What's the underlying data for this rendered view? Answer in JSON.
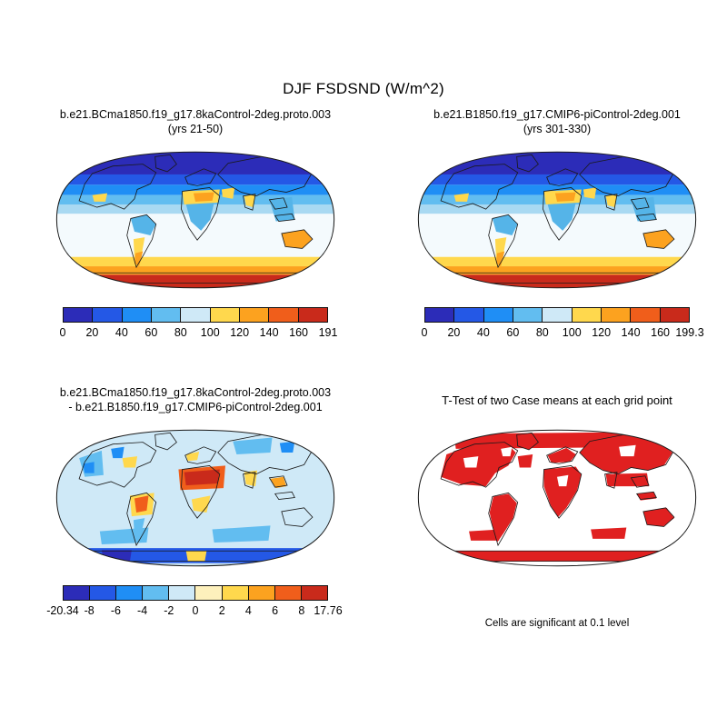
{
  "page": {
    "title": "DJF FSDSND (W/m^2)"
  },
  "chart_data": [
    {
      "type": "heatmap",
      "panel": "top-left",
      "projection": "robinson",
      "variable": "FSDSND",
      "season": "DJF",
      "units": "W/m^2",
      "title_line1": "b.e21.BCma1850.f19_g17.8kaControl-2deg.proto.003",
      "title_line2": "(yrs 21-50)",
      "value_range": [
        0,
        191
      ],
      "colorbar": {
        "tick_labels": [
          "0",
          "20",
          "40",
          "60",
          "80",
          "100",
          "120",
          "140",
          "160",
          "191"
        ],
        "colors": [
          "#2c2cb8",
          "#2458e6",
          "#1f8ef5",
          "#62bdf0",
          "#cfe9f7",
          "#ffd84d",
          "#fca21f",
          "#f05e1b",
          "#c92a1b"
        ],
        "label_mode": "edges"
      }
    },
    {
      "type": "heatmap",
      "panel": "top-right",
      "projection": "robinson",
      "variable": "FSDSND",
      "season": "DJF",
      "units": "W/m^2",
      "title_line1": "b.e21.B1850.f19_g17.CMIP6-piControl-2deg.001",
      "title_line2": "(yrs 301-330)",
      "value_range": [
        0,
        199.3
      ],
      "colorbar": {
        "tick_labels": [
          "0",
          "20",
          "40",
          "60",
          "80",
          "100",
          "120",
          "140",
          "160",
          "199.3"
        ],
        "colors": [
          "#2c2cb8",
          "#2458e6",
          "#1f8ef5",
          "#62bdf0",
          "#cfe9f7",
          "#ffd84d",
          "#fca21f",
          "#f05e1b",
          "#c92a1b"
        ],
        "label_mode": "edges"
      }
    },
    {
      "type": "heatmap",
      "panel": "bottom-left",
      "projection": "robinson",
      "variable": "FSDSND difference",
      "season": "DJF",
      "units": "W/m^2",
      "title_line1": "b.e21.BCma1850.f19_g17.8kaControl-2deg.proto.003",
      "title_line2": "- b.e21.B1850.f19_g17.CMIP6-piControl-2deg.001",
      "value_range": [
        -20.34,
        17.76
      ],
      "colorbar": {
        "tick_labels": [
          "-20.34",
          "-8",
          "-6",
          "-4",
          "-2",
          "0",
          "2",
          "4",
          "6",
          "8",
          "17.76"
        ],
        "colors": [
          "#2c2cb8",
          "#2458e6",
          "#1f8ef5",
          "#62bdf0",
          "#cfe9f7",
          "#fdf0bc",
          "#ffd84d",
          "#fca21f",
          "#f05e1b",
          "#c92a1b"
        ],
        "label_mode": "edges"
      }
    },
    {
      "type": "significance-map",
      "panel": "bottom-right",
      "projection": "robinson",
      "title_line1": "T-Test of two Case means at each grid point",
      "caption": "Cells are significant at 0.1 level",
      "significance_color": "#e02020"
    }
  ]
}
